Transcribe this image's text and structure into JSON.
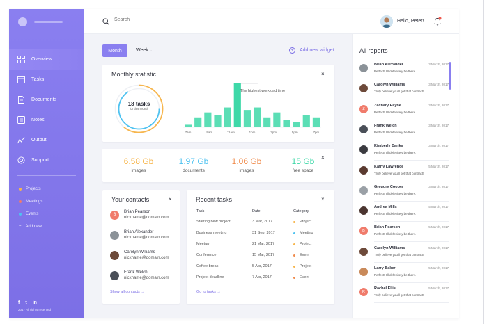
{
  "sidebar": {
    "items": [
      {
        "label": "Overview",
        "icon": "grid-icon",
        "active": true
      },
      {
        "label": "Tasks",
        "icon": "calendar-icon",
        "active": false
      },
      {
        "label": "Documents",
        "icon": "document-icon",
        "active": false
      },
      {
        "label": "Notes",
        "icon": "notes-icon",
        "active": false
      },
      {
        "label": "Output",
        "icon": "output-icon",
        "active": false
      },
      {
        "label": "Support",
        "icon": "support-icon",
        "active": false
      }
    ],
    "categories": [
      {
        "label": "Projects",
        "color": "#f7b64d"
      },
      {
        "label": "Meetings",
        "color": "#f07b6b"
      },
      {
        "label": "Events",
        "color": "#4ec2f0"
      },
      {
        "label": "Add new",
        "color": "#ffffff"
      }
    ],
    "social": [
      "f",
      "t",
      "in"
    ],
    "copyright": "2017 All rights reserved"
  },
  "header": {
    "search_placeholder": "Search",
    "greeting": "Hello, Peter!"
  },
  "toolbar": {
    "month_label": "Month",
    "week_label": "Week",
    "add_widget_label": "Add new widget"
  },
  "monthly": {
    "title": "Monthly statistic",
    "tasks_count": "18 tasks",
    "tasks_caption": "for this month",
    "legend": "The highest workload time",
    "ticks": [
      "7am",
      "9am",
      "11am",
      "1pm",
      "3pm",
      "5pm",
      "7pm"
    ],
    "bars": [
      1,
      4,
      6,
      5,
      8,
      18,
      7,
      8,
      4,
      6,
      3,
      2,
      5,
      4
    ],
    "bar_color": "#3ed8a8",
    "highlight_index": 5,
    "colors": {
      "ring_orange": "#f7b64d",
      "ring_blue": "#4ec2f0"
    }
  },
  "storage": {
    "stats": [
      {
        "value": "6.58 Gb",
        "label": "images",
        "color": "#f7b64d"
      },
      {
        "value": "1.97 Gb",
        "label": "documents",
        "color": "#4ec2f0"
      },
      {
        "value": "1.06 Gb",
        "label": "images",
        "color": "#f08c4d"
      },
      {
        "value": "15 Gb",
        "label": "free space",
        "color": "#3ed8a8"
      }
    ]
  },
  "contacts": {
    "title": "Your contacts",
    "items": [
      {
        "name": "Brian Pearson",
        "email": "nickname@domain.com",
        "initial": "B",
        "color": "#f07b6b"
      },
      {
        "name": "Brian Alexander",
        "email": "nickname@domain.com",
        "initial": "",
        "color": "#8b9298"
      },
      {
        "name": "Carolyn Williams",
        "email": "nickname@domain.com",
        "initial": "",
        "color": "#6d4a3a"
      },
      {
        "name": "Frank Welch",
        "email": "nickname@domain.com",
        "initial": "",
        "color": "#4a4f58"
      }
    ],
    "show_all": "Show all contacts →"
  },
  "tasks": {
    "title": "Recent tasks",
    "headers": [
      "Task",
      "Date",
      "Category"
    ],
    "rows": [
      {
        "task": "Starting new project",
        "date": "3 Mar, 2017",
        "category": "Project",
        "color": "#f7b64d"
      },
      {
        "task": "Business meeting",
        "date": "31 Sep, 2017",
        "category": "Meeting",
        "color": "#4ec2f0"
      },
      {
        "task": "Meetup",
        "date": "21 Mar, 2017",
        "category": "Project",
        "color": "#f7b64d"
      },
      {
        "task": "Conference",
        "date": "15 Mar, 2017",
        "category": "Event",
        "color": "#f08c4d"
      },
      {
        "task": "Coffee break",
        "date": "5 Apr, 2017",
        "category": "Project",
        "color": "#f7b64d"
      },
      {
        "task": "Project deadline",
        "date": "7 Apr, 2017",
        "category": "Event",
        "color": "#f08c4d"
      }
    ],
    "go_to": "Go to tasks →"
  },
  "reports": {
    "title": "All reports",
    "items": [
      {
        "name": "Brian Alexander",
        "date": "3 March, 2017",
        "msg": "Perfect! I'll defenitely be there.",
        "initial": "",
        "color": "#8b9298"
      },
      {
        "name": "Carolyn Williams",
        "date": "3 March, 2017",
        "msg": "Truly believe you'll get that contract!",
        "initial": "",
        "color": "#6d4a3a"
      },
      {
        "name": "Zachary Payne",
        "date": "3 March, 2017",
        "msg": "Perfect! I'll defenitely be there.",
        "initial": "Z",
        "color": "#f07b6b"
      },
      {
        "name": "Frank Welch",
        "date": "3 March, 2017",
        "msg": "Perfect! I'll defenitely be there.",
        "initial": "",
        "color": "#4a4f58"
      },
      {
        "name": "Kimberly Banks",
        "date": "3 March, 2017",
        "msg": "Perfect! I'll defenitely be there.",
        "initial": "",
        "color": "#3b3b40"
      },
      {
        "name": "Kathy Lawrence",
        "date": "5 March, 2017",
        "msg": "Truly believe you'll get that contract!",
        "initial": "",
        "color": "#5a3a30"
      },
      {
        "name": "Gregory Cooper",
        "date": "3 March, 2017",
        "msg": "Perfect! I'll defenitely be there.",
        "initial": "",
        "color": "#9aa0a6"
      },
      {
        "name": "Andrea Mills",
        "date": "5 March, 2017",
        "msg": "Perfect! I'll defenitely be there.",
        "initial": "",
        "color": "#4b3530"
      },
      {
        "name": "Brian Pearson",
        "date": "5 March, 2017",
        "msg": "Perfect! I'll defenitely be there.",
        "initial": "B",
        "color": "#f07b6b"
      },
      {
        "name": "Carolyn Williams",
        "date": "5 March, 2017",
        "msg": "Truly believe you'll get that contract!",
        "initial": "",
        "color": "#6d4a3a"
      },
      {
        "name": "Larry Baker",
        "date": "5 March, 2017",
        "msg": "Perfect! I'll defenitely be there.",
        "initial": "",
        "color": "#c98a5a"
      },
      {
        "name": "Rachel Ellis",
        "date": "5 March, 2017",
        "msg": "Truly believe you'll get that contract!",
        "initial": "R",
        "color": "#f07b6b"
      }
    ]
  }
}
